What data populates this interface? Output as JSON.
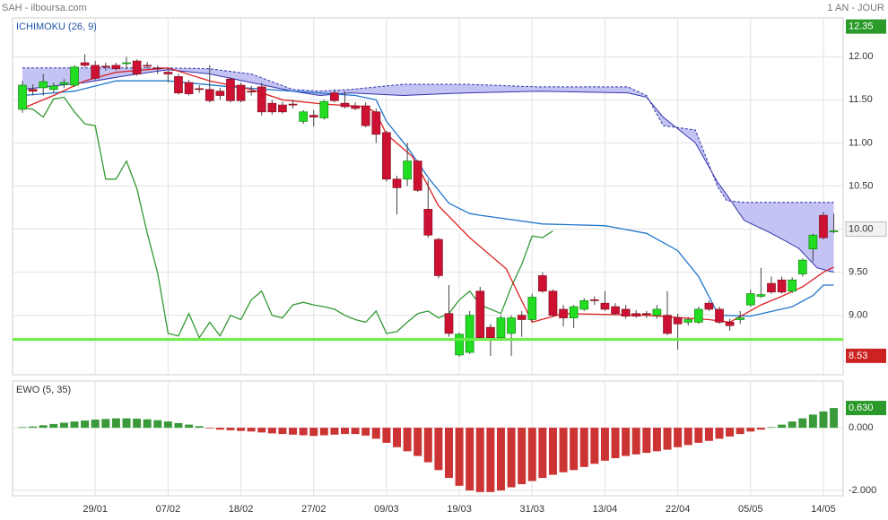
{
  "header": {
    "title": "SAH - ilboursa.com",
    "period": "1 AN - JOUR"
  },
  "chart_data": [
    {
      "type": "candlestick",
      "title": "ICHIMOKU (26, 9)",
      "title_color": "#2255aa",
      "xlim": [
        -0.95,
        78.9
      ],
      "ylim": [
        8.31,
        12.45
      ],
      "yticks": [
        {
          "value": 12,
          "label": "12.00"
        },
        {
          "value": 11.5,
          "label": "11.50"
        },
        {
          "value": 11,
          "label": "11.00"
        },
        {
          "value": 10.5,
          "label": "10.50"
        },
        {
          "value": 10,
          "label": "10.00",
          "boxed": true
        },
        {
          "value": 9.5,
          "label": "9.50"
        },
        {
          "value": 9,
          "label": "9.00"
        }
      ],
      "xticks": [
        7,
        14,
        21,
        28,
        35,
        42,
        49,
        56,
        63,
        70,
        77
      ],
      "up_color": "#22dd22",
      "down_color": "#cc1133",
      "x": [
        0,
        1,
        2,
        3,
        4,
        5,
        6,
        7,
        8,
        9,
        10,
        11,
        12,
        13,
        14,
        15,
        16,
        17,
        18,
        19,
        20,
        21,
        22,
        23,
        24,
        25,
        26,
        27,
        28,
        29,
        30,
        31,
        32,
        33,
        34,
        35,
        36,
        37,
        38,
        39,
        40,
        41,
        42,
        43,
        44,
        45,
        46,
        47,
        48,
        49,
        50,
        51,
        52,
        53,
        54,
        55,
        56,
        57,
        58,
        59,
        60,
        61,
        62,
        63,
        64,
        65,
        66,
        67,
        68,
        69,
        70,
        71,
        72,
        73,
        74,
        75,
        76,
        77,
        78
      ],
      "open": [
        11.39,
        11.62,
        11.64,
        11.62,
        11.68,
        11.67,
        11.93,
        11.9,
        11.89,
        11.9,
        11.92,
        11.95,
        11.9,
        11.87,
        11.82,
        11.77,
        11.7,
        11.63,
        11.62,
        11.6,
        11.74,
        11.67,
        11.6,
        11.65,
        11.46,
        11.44,
        11.45,
        11.25,
        11.32,
        11.29,
        11.58,
        11.46,
        11.43,
        11.43,
        11.36,
        11.12,
        10.58,
        10.58,
        10.79,
        10.23,
        9.88,
        9.02,
        8.54,
        8.57,
        9.28,
        8.86,
        8.74,
        8.79,
        9.0,
        8.95,
        9.46,
        9.28,
        9.07,
        8.97,
        9.07,
        9.18,
        9.14,
        9.1,
        9.07,
        9.02,
        9.02,
        9.0,
        9.0,
        8.97,
        8.92,
        8.92,
        9.14,
        9.07,
        8.92,
        8.95,
        9.12,
        9.22,
        9.37,
        9.41,
        9.28,
        9.48,
        9.77,
        10.16,
        9.97
      ],
      "high": [
        11.72,
        11.68,
        11.8,
        11.7,
        11.74,
        11.9,
        12.03,
        11.95,
        11.93,
        11.93,
        12.0,
        11.97,
        11.94,
        11.9,
        11.87,
        11.8,
        11.73,
        11.67,
        11.9,
        11.64,
        11.76,
        11.7,
        11.66,
        11.7,
        11.5,
        11.48,
        11.5,
        11.38,
        11.38,
        11.5,
        11.62,
        11.6,
        11.47,
        11.47,
        11.4,
        11.14,
        10.62,
        11.0,
        10.8,
        10.57,
        9.9,
        9.35,
        8.8,
        9.05,
        9.33,
        8.9,
        9.0,
        9.0,
        9.05,
        9.25,
        9.5,
        9.3,
        9.12,
        9.12,
        9.2,
        9.22,
        9.28,
        9.14,
        9.12,
        9.06,
        9.05,
        9.12,
        9.28,
        9.02,
        8.98,
        9.1,
        9.17,
        9.1,
        8.96,
        9.05,
        9.3,
        9.55,
        9.45,
        9.45,
        9.44,
        9.66,
        9.95,
        10.2,
        10.18
      ],
      "low": [
        11.35,
        11.55,
        11.55,
        11.58,
        11.64,
        11.65,
        11.88,
        11.73,
        11.84,
        11.84,
        11.85,
        11.78,
        11.86,
        11.8,
        11.7,
        11.56,
        11.55,
        11.58,
        11.47,
        11.5,
        11.47,
        11.47,
        11.55,
        11.32,
        11.33,
        11.34,
        11.4,
        11.22,
        11.19,
        11.27,
        11.47,
        11.4,
        11.38,
        11.18,
        11.0,
        10.55,
        10.17,
        10.5,
        10.43,
        9.9,
        9.43,
        8.75,
        8.52,
        8.55,
        8.72,
        8.53,
        8.7,
        8.53,
        8.75,
        8.93,
        9.26,
        8.98,
        8.87,
        8.85,
        9.05,
        9.12,
        9.05,
        9.0,
        8.96,
        8.97,
        8.97,
        8.96,
        8.77,
        8.6,
        8.88,
        8.9,
        9.05,
        8.9,
        8.82,
        8.9,
        9.1,
        9.2,
        9.25,
        9.25,
        9.26,
        9.45,
        9.62,
        9.88,
        9.95
      ],
      "close": [
        11.67,
        11.6,
        11.71,
        11.66,
        11.7,
        11.88,
        11.9,
        11.75,
        11.88,
        11.86,
        11.93,
        11.8,
        11.89,
        11.86,
        11.8,
        11.58,
        11.57,
        11.62,
        11.49,
        11.55,
        11.49,
        11.49,
        11.59,
        11.36,
        11.36,
        11.36,
        11.44,
        11.36,
        11.3,
        11.48,
        11.49,
        11.42,
        11.4,
        11.2,
        11.1,
        10.58,
        10.48,
        10.79,
        10.45,
        9.93,
        9.46,
        8.79,
        8.78,
        9.0,
        8.74,
        8.74,
        8.97,
        8.97,
        8.95,
        9.21,
        9.28,
        9.0,
        8.97,
        9.1,
        9.17,
        9.17,
        9.07,
        9.02,
        8.99,
        8.99,
        9.01,
        9.07,
        8.79,
        8.9,
        8.95,
        9.07,
        9.07,
        8.92,
        8.88,
        8.97,
        9.25,
        9.24,
        9.27,
        9.27,
        9.41,
        9.64,
        9.93,
        9.9,
        9.98
      ],
      "cloud": {
        "color": "#b8b8f2",
        "line_color": "#3333aa",
        "x": [
          0,
          6,
          10,
          14,
          18,
          22,
          26,
          28.6,
          31.5,
          36.6,
          42.7,
          49.6,
          58.2,
          60,
          61.6,
          64.7,
          66.8,
          67.7,
          69.4,
          72,
          74.6,
          76.4,
          78
        ],
        "span_a": [
          11.62,
          11.7,
          11.78,
          11.85,
          11.8,
          11.7,
          11.6,
          11.55,
          11.58,
          11.55,
          11.58,
          11.6,
          11.58,
          11.53,
          11.3,
          11.0,
          10.55,
          10.4,
          10.1,
          9.95,
          9.78,
          9.55,
          9.5
        ],
        "span_b": [
          11.87,
          11.87,
          11.87,
          11.87,
          11.86,
          11.8,
          11.62,
          11.6,
          11.62,
          11.68,
          11.68,
          11.65,
          11.65,
          11.55,
          11.2,
          11.15,
          10.5,
          10.33,
          10.31,
          10.31,
          10.31,
          10.31,
          10.31
        ]
      },
      "lines": [
        {
          "color": "#339933",
          "x": [
            0,
            1,
            2,
            3,
            4,
            5,
            6,
            7,
            8,
            9,
            10,
            11,
            12,
            13,
            14,
            15,
            16,
            17,
            18,
            19,
            20,
            21,
            22,
            23,
            24,
            25,
            26,
            27,
            28,
            29,
            30,
            31,
            32,
            33,
            34,
            35,
            36,
            37,
            38,
            39,
            40,
            41,
            42,
            43,
            44,
            45,
            46,
            47,
            48,
            49,
            50,
            51
          ],
          "values": [
            11.41,
            11.39,
            11.3,
            11.51,
            11.53,
            11.36,
            11.22,
            11.2,
            10.58,
            10.58,
            10.79,
            10.47,
            9.95,
            9.49,
            8.79,
            8.76,
            9.02,
            8.74,
            8.92,
            8.76,
            9.0,
            8.95,
            9.18,
            9.28,
            9.0,
            8.97,
            9.12,
            9.15,
            9.12,
            9.1,
            9.07,
            9.0,
            8.95,
            8.92,
            9.05,
            8.79,
            8.81,
            8.92,
            9.02,
            9.05,
            8.97,
            9.02,
            9.18,
            9.28,
            9.12,
            9.07,
            9.02,
            9.33,
            9.59,
            9.92,
            9.9,
            9.98
          ]
        },
        {
          "color": "#2277cc",
          "x": [
            0,
            5,
            9,
            14,
            20,
            26,
            32,
            34,
            35,
            37,
            39,
            41,
            43,
            44,
            50,
            56,
            60,
            63,
            65,
            66.5,
            67,
            70,
            74,
            76,
            77,
            78
          ],
          "values": [
            11.55,
            11.6,
            11.72,
            11.72,
            11.65,
            11.6,
            11.55,
            11.5,
            11.25,
            10.95,
            10.6,
            10.3,
            10.18,
            10.16,
            10.06,
            10.04,
            9.95,
            9.75,
            9.45,
            9.1,
            9.0,
            8.99,
            9.1,
            9.23,
            9.35,
            9.35
          ]
        },
        {
          "color": "#dd2222",
          "x": [
            0,
            3,
            6,
            9,
            14,
            18,
            22,
            25,
            29,
            33,
            34,
            35,
            37.5,
            40,
            43,
            46.5,
            49,
            52,
            60,
            66,
            68,
            71,
            73,
            75,
            77,
            78
          ],
          "values": [
            11.4,
            11.55,
            11.72,
            11.82,
            11.87,
            11.72,
            11.62,
            11.5,
            11.45,
            11.42,
            11.35,
            11.1,
            10.84,
            10.27,
            9.9,
            9.54,
            8.92,
            9.02,
            9.0,
            8.95,
            8.92,
            9.12,
            9.22,
            9.33,
            9.5,
            9.56
          ]
        }
      ],
      "hlines": [
        {
          "value": 8.72,
          "color": "#66ee44"
        }
      ],
      "price_labels": [
        {
          "value": 12.35,
          "label": "12.35",
          "color": "#2a9a2a"
        },
        {
          "value": 8.53,
          "label": "8.53",
          "color": "#cc2222"
        }
      ]
    },
    {
      "type": "bar",
      "title": "EWO (5, 35)",
      "title_color": "#333333",
      "xlim": [
        -0.95,
        78.9
      ],
      "ylim": [
        -2.17,
        1.49
      ],
      "yticks": [
        {
          "value": 0,
          "label": "0.000"
        },
        {
          "value": -2,
          "label": "-2.000"
        }
      ],
      "xticks": [
        {
          "value": 7,
          "label": "29/01"
        },
        {
          "value": 14,
          "label": "07/02"
        },
        {
          "value": 21,
          "label": "18/02"
        },
        {
          "value": 28,
          "label": "27/02"
        },
        {
          "value": 35,
          "label": "09/03"
        },
        {
          "value": 42,
          "label": "19/03"
        },
        {
          "value": 49,
          "label": "31/03"
        },
        {
          "value": 56,
          "label": "13/04"
        },
        {
          "value": 63,
          "label": "22/04"
        },
        {
          "value": 70,
          "label": "05/05"
        },
        {
          "value": 77,
          "label": "14/05"
        }
      ],
      "up_color": "#3a9a3a",
      "down_color": "#cc3333",
      "x": [
        0,
        1,
        2,
        3,
        4,
        5,
        6,
        7,
        8,
        9,
        10,
        11,
        12,
        13,
        14,
        15,
        16,
        17,
        18,
        19,
        20,
        21,
        22,
        23,
        24,
        25,
        26,
        27,
        28,
        29,
        30,
        31,
        32,
        33,
        34,
        35,
        36,
        37,
        38,
        39,
        40,
        41,
        42,
        43,
        44,
        45,
        46,
        47,
        48,
        49,
        50,
        51,
        52,
        53,
        54,
        55,
        56,
        57,
        58,
        59,
        60,
        61,
        62,
        63,
        64,
        65,
        66,
        67,
        68,
        69,
        70,
        71,
        72,
        73,
        74,
        75,
        76,
        77,
        78
      ],
      "values": [
        0.02,
        0.04,
        0.08,
        0.12,
        0.16,
        0.2,
        0.23,
        0.26,
        0.28,
        0.3,
        0.3,
        0.29,
        0.27,
        0.24,
        0.2,
        0.15,
        0.1,
        0.05,
        -0.02,
        -0.06,
        -0.08,
        -0.1,
        -0.12,
        -0.15,
        -0.18,
        -0.2,
        -0.22,
        -0.24,
        -0.26,
        -0.24,
        -0.22,
        -0.2,
        -0.2,
        -0.25,
        -0.35,
        -0.48,
        -0.62,
        -0.75,
        -0.9,
        -1.1,
        -1.35,
        -1.6,
        -1.85,
        -2.0,
        -2.05,
        -2.05,
        -2.0,
        -1.9,
        -1.8,
        -1.7,
        -1.6,
        -1.5,
        -1.42,
        -1.35,
        -1.25,
        -1.15,
        -1.05,
        -0.97,
        -0.9,
        -0.85,
        -0.8,
        -0.75,
        -0.7,
        -0.62,
        -0.55,
        -0.48,
        -0.42,
        -0.35,
        -0.28,
        -0.2,
        -0.12,
        -0.06,
        0.02,
        0.1,
        0.2,
        0.3,
        0.42,
        0.52,
        0.63
      ],
      "price_labels": [
        {
          "value": 0.63,
          "label": "0.630",
          "color": "#2a9a2a"
        }
      ]
    }
  ]
}
